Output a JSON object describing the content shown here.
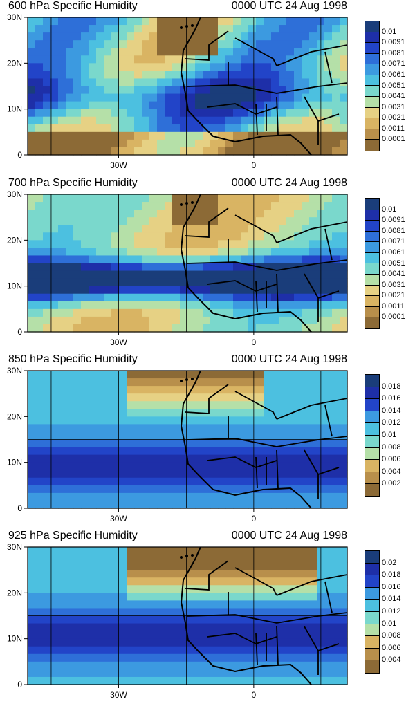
{
  "panels": [
    {
      "title_left": "600 hPa Specific Humidity",
      "title_right": "0000 UTC 24 Aug 1998",
      "colorbar_labels": [
        "0.01",
        "0.0091",
        "0.0081",
        "0.0071",
        "0.0061",
        "0.0051",
        "0.0041",
        "0.0031",
        "0.0021",
        "0.0011",
        "0.0001"
      ],
      "lat_labels": [
        "30N",
        "20N",
        "10N",
        "0"
      ],
      "lon_labels": [
        "30W",
        "0"
      ]
    },
    {
      "title_left": "700 hPa Specific Humidity",
      "title_right": "0000 UTC 24 Aug 1998",
      "colorbar_labels": [
        "0.01",
        "0.0091",
        "0.0081",
        "0.0071",
        "0.0061",
        "0.0051",
        "0.0041",
        "0.0031",
        "0.0021",
        "0.0011",
        "0.0001"
      ],
      "lat_labels": [
        "30N",
        "20N",
        "10N",
        "0"
      ],
      "lon_labels": [
        "30W",
        "0"
      ]
    },
    {
      "title_left": "850 hPa Specific Humidity",
      "title_right": "0000 UTC 24 Aug 1998",
      "colorbar_labels": [
        "0.018",
        "0.016",
        "0.014",
        "0.012",
        "0.01",
        "0.008",
        "0.006",
        "0.004",
        "0.002"
      ],
      "lat_labels": [
        "30N",
        "20N",
        "10N",
        "0"
      ],
      "lon_labels": [
        "30W",
        "0"
      ]
    },
    {
      "title_left": "925 hPa Specific Humidity",
      "title_right": "0000 UTC 24 Aug 1998",
      "colorbar_labels": [
        "0.02",
        "0.018",
        "0.016",
        "0.014",
        "0.012",
        "0.01",
        "0.008",
        "0.006",
        "0.004"
      ],
      "lat_labels": [
        "30N",
        "20N",
        "10N",
        "0"
      ],
      "lon_labels": [
        "30W",
        "0"
      ]
    }
  ],
  "palette": [
    "#1a3d7a",
    "#1e2fa8",
    "#2244c8",
    "#2e6fd8",
    "#3c9ae0",
    "#4cc0e0",
    "#7ad8cc",
    "#b5e0a8",
    "#e6d184",
    "#d9b463",
    "#b88f4b",
    "#8c6a36"
  ]
}
